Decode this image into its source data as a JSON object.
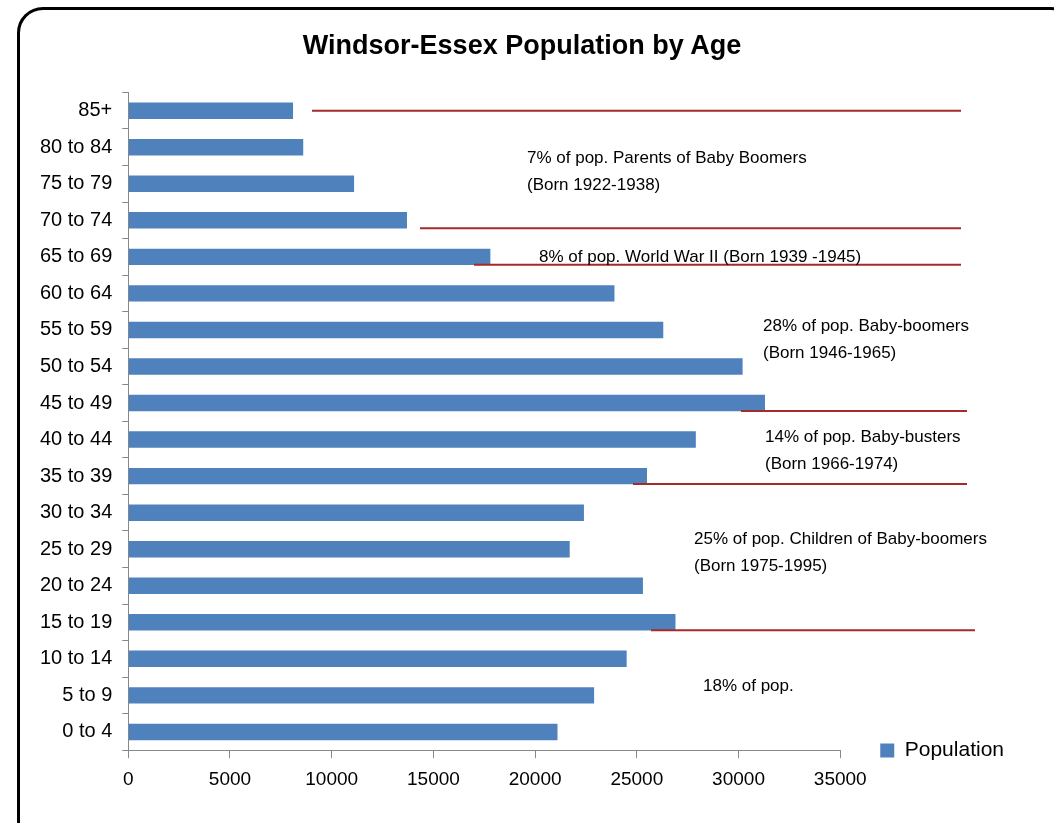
{
  "chart_data": {
    "type": "bar",
    "orientation": "horizontal",
    "title": "Windsor-Essex Population by Age",
    "categories": [
      "85+",
      "80 to 84",
      "75 to 79",
      "70 to 74",
      "65 to 69",
      "60 to 64",
      "55 to 59",
      "50 to 54",
      "45 to 49",
      "40 to 44",
      "35 to 39",
      "30 to 34",
      "25 to 29",
      "20 to 24",
      "15 to 19",
      "10 to 14",
      "5 to 9",
      "0 to 4"
    ],
    "series": [
      {
        "name": "Population",
        "color": "#4f81bd",
        "values": [
          8100,
          8600,
          11100,
          13700,
          17800,
          23900,
          26300,
          30200,
          31300,
          27900,
          25500,
          22400,
          21700,
          25300,
          26900,
          24500,
          22900,
          21100
        ]
      }
    ],
    "xlim": [
      0,
      35000
    ],
    "xticks": [
      0,
      5000,
      10000,
      15000,
      20000,
      25000,
      30000,
      35000
    ],
    "legend": "bottom right",
    "ref_lines": [
      {
        "axis": "y",
        "value": "85+",
        "color": "#a52a2a"
      },
      {
        "axis": "y",
        "value": "70 to 74",
        "color": "#a52a2a"
      },
      {
        "axis": "y",
        "value": "65 to 69",
        "color": "#a52a2a"
      },
      {
        "axis": "y",
        "value": "45 to 49",
        "color": "#a52a2a"
      },
      {
        "axis": "y",
        "value": "35 to 39",
        "color": "#a52a2a"
      },
      {
        "axis": "y",
        "value": "15 to 19",
        "color": "#a52a2a"
      }
    ],
    "annotations": [
      "7% of pop. Parents of Baby Boomers\n(Born 1922-1938)",
      "8% of pop. World War II (Born 1939 -1945)",
      "28% of pop. Baby-boomers\n(Born 1946-1965)",
      "14% of pop. Baby-busters\n(Born 1966-1974)",
      "25% of pop. Children of Baby-boomers\n(Born 1975-1995)",
      "18% of pop."
    ]
  }
}
